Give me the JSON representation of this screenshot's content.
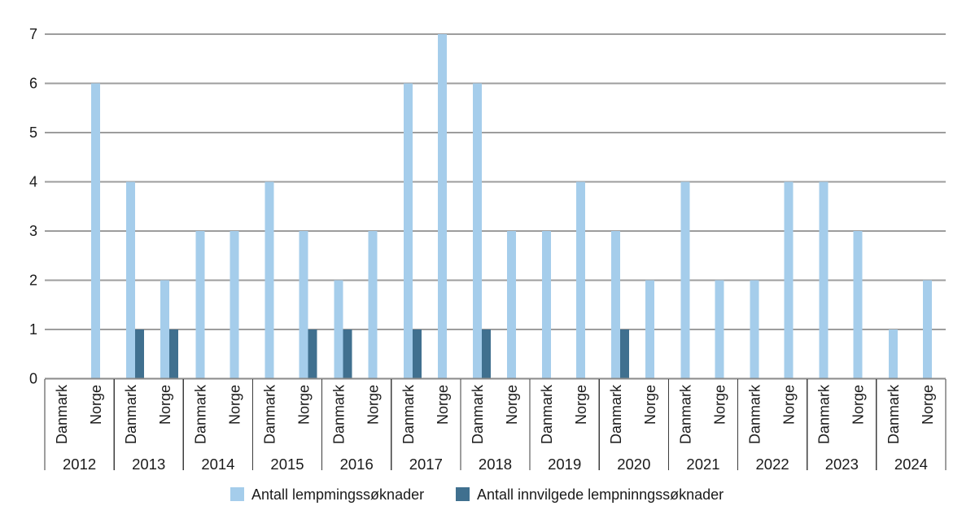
{
  "chart_data": {
    "type": "bar",
    "title": "",
    "categories": [
      "2012",
      "2013",
      "2014",
      "2015",
      "2016",
      "2017",
      "2018",
      "2019",
      "2020",
      "2021",
      "2022",
      "2023",
      "2024"
    ],
    "sub_categories": [
      "Danmark",
      "Norge"
    ],
    "series": [
      {
        "name": "Antall lempmingssøknader",
        "color": "#a5cdeb",
        "values": {
          "Danmark": [
            0,
            4,
            3,
            4,
            2,
            6,
            6,
            3,
            3,
            4,
            2,
            4,
            1
          ],
          "Norge": [
            6,
            2,
            3,
            3,
            3,
            7,
            3,
            4,
            2,
            2,
            4,
            3,
            2
          ]
        }
      },
      {
        "name": "Antall innvilgede lempninngssøknader",
        "color": "#40708f",
        "values": {
          "Danmark": [
            0,
            1,
            0,
            0,
            1,
            1,
            1,
            0,
            1,
            0,
            0,
            0,
            0
          ],
          "Norge": [
            0,
            1,
            0,
            1,
            0,
            0,
            0,
            0,
            0,
            0,
            0,
            0,
            0
          ]
        }
      }
    ],
    "y_axis": {
      "min": 0,
      "max": 7,
      "tick_step": 1,
      "ticks": [
        0,
        1,
        2,
        3,
        4,
        5,
        6,
        7
      ]
    },
    "grid": true,
    "legend_position": "bottom"
  },
  "style": {
    "bar_light": "#a5cdeb",
    "bar_dark": "#40708f",
    "grid_color": "#9d9d9d",
    "axis_color": "#8a8a8a",
    "divider_color": "#3d3d3d",
    "text_color": "#1a1a1a",
    "background": "#ffffff"
  }
}
